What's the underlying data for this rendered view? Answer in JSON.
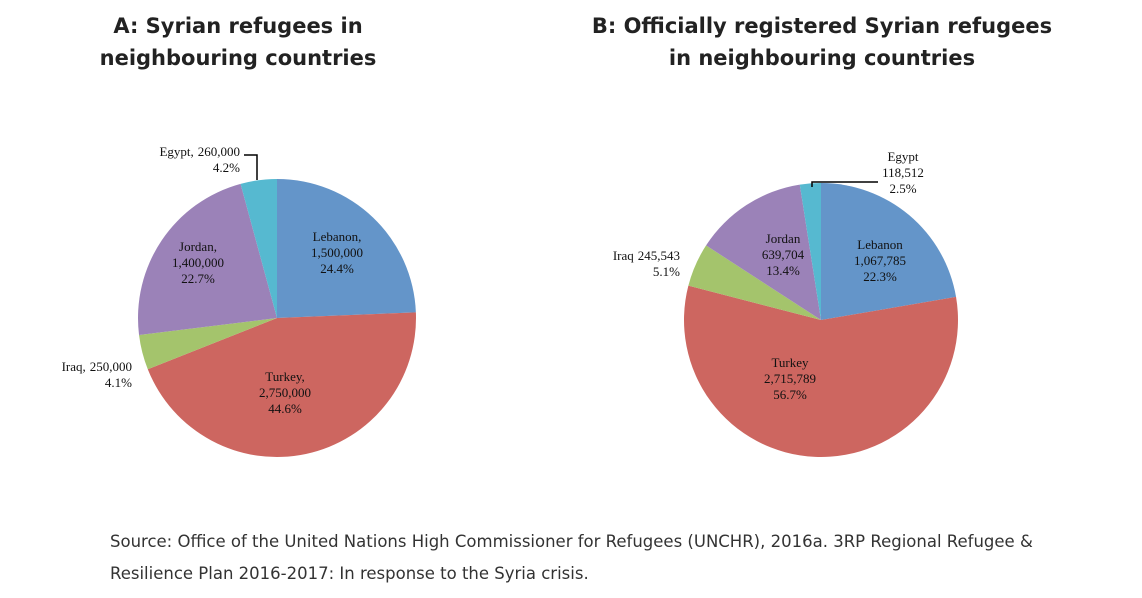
{
  "chart_data": [
    {
      "type": "pie",
      "title": [
        "A: Syrian refugees in",
        "neighbouring countries"
      ],
      "categories": [
        "Lebanon,",
        "Turkey,",
        "Iraq,",
        "Jordan,",
        "Egypt,"
      ],
      "values": [
        1500000,
        2750000,
        250000,
        1400000,
        260000
      ],
      "value_labels": [
        "1,500,000",
        "2,750,000",
        "250,000",
        "1,400,000",
        "260,000"
      ],
      "percents": [
        24.4,
        44.6,
        4.1,
        22.7,
        4.2
      ],
      "percent_labels": [
        "24.4%",
        "44.6%",
        "4.1%",
        "22.7%",
        "4.2%"
      ],
      "colors": [
        "#6495c9",
        "#cd6660",
        "#a4c46c",
        "#9b82b8",
        "#56b9d0"
      ]
    },
    {
      "type": "pie",
      "title": [
        "B: Officially registered Syrian refugees",
        "in neighbouring countries"
      ],
      "categories": [
        "Lebanon",
        "Turkey",
        "Iraq",
        "Jordan",
        "Egypt"
      ],
      "values": [
        1067785,
        2715789,
        245543,
        639704,
        118512
      ],
      "value_labels": [
        "1,067,785",
        "2,715,789",
        "245,543",
        "639,704",
        "118,512"
      ],
      "percents": [
        22.3,
        56.7,
        5.1,
        13.4,
        2.5
      ],
      "percent_labels": [
        "22.3%",
        "56.7%",
        "5.1%",
        "13.4%",
        "2.5%"
      ],
      "colors": [
        "#6495c9",
        "#cd6660",
        "#a4c46c",
        "#9b82b8",
        "#56b9d0"
      ]
    }
  ],
  "source": "Source: Office of the United Nations High Commissioner for Refugees (UNCHR), 2016a. 3RP Regional Refugee & Resilience Plan 2016-2017: In response to the Syria crisis."
}
